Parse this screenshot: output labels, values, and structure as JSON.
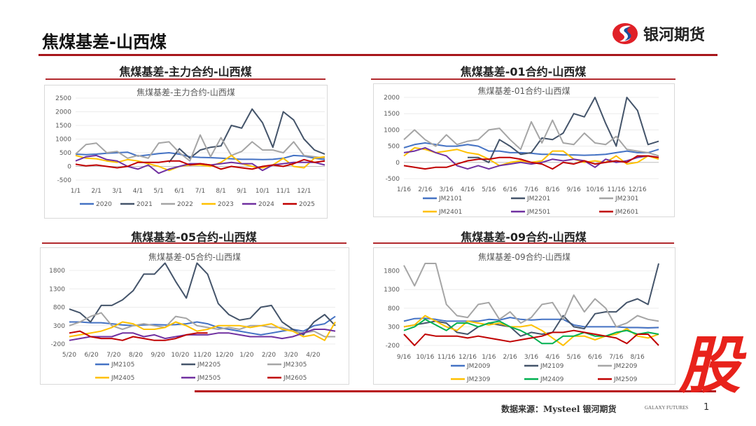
{
  "header": {
    "title": "焦煤基差-山西煤",
    "logo_text": "银河期货"
  },
  "footer": {
    "source": "数据来源：Mysteel 银河期货",
    "galaxy": "GALAXY FUTURES",
    "page_number": "1",
    "stamp": "股"
  },
  "panels": [
    {
      "heading": "焦煤基差-主力合约-山西煤"
    },
    {
      "heading": "焦煤基差-01合约-山西煤"
    },
    {
      "heading": "焦煤基差-05合约-山西煤"
    },
    {
      "heading": "焦煤基差-09合约-山西煤"
    }
  ],
  "chart_data": [
    {
      "type": "line",
      "title": "焦煤基差-主力合约-山西煤",
      "ylim": [
        -500,
        2500
      ],
      "yticks": [
        -500,
        0,
        500,
        1000,
        1500,
        2000,
        2500
      ],
      "xticks": [
        "1/1",
        "2/1",
        "3/1",
        "4/1",
        "5/1",
        "6/1",
        "7/1",
        "8/1",
        "9/1",
        "10/1",
        "11/1",
        "12/1"
      ],
      "legend_position": "bottom",
      "series": [
        {
          "name": "2020",
          "color": "#4472c4",
          "values": [
            450,
            430,
            450,
            480,
            500,
            520,
            380,
            420,
            470,
            500,
            450,
            350,
            330,
            320,
            300,
            280,
            260,
            260,
            250,
            260,
            300,
            400,
            380,
            300,
            250
          ]
        },
        {
          "name": "2021",
          "color": "#44546a",
          "values": [
            null,
            null,
            null,
            null,
            null,
            null,
            null,
            null,
            null,
            150,
            650,
            300,
            600,
            700,
            750,
            1500,
            1400,
            2100,
            1600,
            700,
            2000,
            1700,
            1000,
            600,
            450
          ]
        },
        {
          "name": "2022",
          "color": "#a5a5a5",
          "values": [
            450,
            800,
            850,
            500,
            550,
            300,
            400,
            300,
            850,
            900,
            500,
            200,
            1150,
            350,
            1050,
            400,
            550,
            900,
            600,
            600,
            500,
            900,
            400,
            350,
            300
          ]
        },
        {
          "name": "2023",
          "color": "#ffc000",
          "values": [
            400,
            300,
            280,
            200,
            150,
            250,
            200,
            100,
            0,
            -150,
            0,
            50,
            50,
            0,
            150,
            400,
            100,
            0,
            -50,
            50,
            300,
            0,
            -50,
            300,
            350
          ]
        },
        {
          "name": "2024",
          "color": "#7030a0",
          "values": [
            200,
            350,
            400,
            250,
            200,
            0,
            -100,
            50,
            -250,
            -100,
            0,
            100,
            100,
            50,
            100,
            150,
            100,
            100,
            -150,
            50,
            100,
            150,
            150,
            150,
            50
          ]
        },
        {
          "name": "2025",
          "color": "#c00000",
          "values": [
            80,
            20,
            50,
            0,
            -50,
            0,
            150,
            150,
            150,
            200,
            200,
            50,
            100,
            50,
            -100,
            0,
            -50,
            -100,
            0,
            50,
            0,
            100,
            250,
            150,
            200
          ]
        }
      ]
    },
    {
      "type": "line",
      "title": "焦煤基差-01合约-山西煤",
      "ylim": [
        -500,
        2000
      ],
      "yticks": [
        -500,
        0,
        500,
        1000,
        1500,
        2000
      ],
      "xticks": [
        "1/16",
        "2/16",
        "3/16",
        "4/16",
        "5/16",
        "6/16",
        "7/16",
        "8/16",
        "9/16",
        "10/16",
        "11/16",
        "12/16"
      ],
      "legend_position": "bottom",
      "series": [
        {
          "name": "JM2101",
          "color": "#4472c4",
          "values": [
            450,
            550,
            600,
            550,
            500,
            500,
            550,
            500,
            350,
            350,
            300,
            300,
            280,
            250,
            250,
            230,
            230,
            220,
            230,
            250,
            300,
            350,
            300,
            300,
            400
          ]
        },
        {
          "name": "JM2201",
          "color": "#44546a",
          "values": [
            null,
            null,
            null,
            null,
            null,
            null,
            150,
            150,
            0,
            700,
            500,
            250,
            300,
            750,
            700,
            900,
            1500,
            1400,
            2000,
            1200,
            500,
            2000,
            1600,
            550,
            650
          ]
        },
        {
          "name": "JM2301",
          "color": "#a5a5a5",
          "values": [
            700,
            1000,
            700,
            500,
            850,
            550,
            650,
            700,
            1000,
            1050,
            700,
            400,
            1250,
            600,
            1300,
            600,
            550,
            900,
            600,
            550,
            800,
            400,
            350,
            300,
            200
          ]
        },
        {
          "name": "JM2401",
          "color": "#ffc000",
          "values": [
            200,
            450,
            400,
            300,
            350,
            400,
            300,
            250,
            100,
            -100,
            0,
            50,
            0,
            50,
            350,
            350,
            100,
            0,
            50,
            0,
            200,
            -50,
            0,
            200,
            100
          ]
        },
        {
          "name": "JM2501",
          "color": "#7030a0",
          "values": [
            300,
            350,
            450,
            300,
            200,
            -100,
            -200,
            -100,
            -200,
            -100,
            -50,
            0,
            -50,
            0,
            100,
            50,
            100,
            50,
            -150,
            100,
            0,
            50,
            150,
            200,
            150
          ]
        },
        {
          "name": "JM2601",
          "color": "#c00000",
          "values": [
            -100,
            -150,
            -200,
            -150,
            -150,
            -50,
            50,
            100,
            100,
            150,
            150,
            100,
            0,
            -50,
            -200,
            0,
            -50,
            50,
            -50,
            0,
            50,
            0,
            200,
            200,
            150
          ]
        }
      ]
    },
    {
      "type": "line",
      "title": "焦煤基差-05合约-山西煤",
      "ylim": [
        -200,
        2000
      ],
      "yticks": [
        -200,
        300,
        800,
        1300,
        1800
      ],
      "xticks": [
        "5/20",
        "6/20",
        "7/20",
        "8/20",
        "9/20",
        "10/20",
        "11/20",
        "12/20",
        "1/20",
        "2/20",
        "3/20",
        "4/20"
      ],
      "legend_position": "bottom",
      "series": [
        {
          "name": "JM2105",
          "color": "#4472c4",
          "values": [
            400,
            400,
            380,
            380,
            350,
            320,
            300,
            320,
            330,
            320,
            330,
            350,
            400,
            350,
            250,
            200,
            150,
            100,
            50,
            100,
            150,
            200,
            150,
            300,
            350,
            550
          ]
        },
        {
          "name": "JM2205",
          "color": "#44546a",
          "values": [
            750,
            650,
            400,
            850,
            850,
            1000,
            1250,
            1700,
            1700,
            2000,
            1500,
            1050,
            2000,
            1700,
            900,
            600,
            450,
            500,
            800,
            850,
            400,
            200,
            50,
            400,
            600,
            300
          ]
        },
        {
          "name": "JM2305",
          "color": "#a5a5a5",
          "values": [
            300,
            400,
            550,
            650,
            300,
            200,
            300,
            350,
            300,
            250,
            550,
            500,
            300,
            250,
            200,
            250,
            200,
            300,
            300,
            250,
            250,
            150,
            100,
            150,
            0,
            0
          ]
        },
        {
          "name": "JM2405",
          "color": "#ffc000",
          "values": [
            0,
            50,
            100,
            150,
            250,
            400,
            350,
            200,
            200,
            250,
            400,
            300,
            150,
            200,
            300,
            300,
            300,
            250,
            300,
            350,
            200,
            150,
            0,
            50,
            -100,
            400
          ]
        },
        {
          "name": "JM2505",
          "color": "#7030a0",
          "values": [
            -100,
            -50,
            0,
            0,
            0,
            100,
            100,
            0,
            50,
            -50,
            0,
            50,
            50,
            50,
            100,
            100,
            50,
            0,
            0,
            0,
            -50,
            0,
            100,
            200,
            200,
            150
          ]
        },
        {
          "name": "JM2605",
          "color": "#c00000",
          "values": [
            100,
            150,
            0,
            -50,
            -50,
            -100,
            0,
            -50,
            -100,
            -100,
            -50,
            50,
            100,
            100,
            null,
            null,
            null,
            null,
            null,
            null,
            null,
            null,
            null,
            null,
            null,
            null
          ]
        }
      ]
    },
    {
      "type": "line",
      "title": "焦煤基差-09合约-山西煤",
      "ylim": [
        -200,
        2000
      ],
      "yticks": [
        -200,
        300,
        800,
        1300,
        1800
      ],
      "xticks": [
        "9/16",
        "10/16",
        "11/16",
        "12/16",
        "1/16",
        "2/16",
        "3/16",
        "4/16",
        "5/16",
        "6/16",
        "7/16",
        "8/16"
      ],
      "legend_position": "bottom",
      "series": [
        {
          "name": "JM2009",
          "color": "#4472c4",
          "values": [
            450,
            520,
            530,
            500,
            450,
            450,
            450,
            450,
            500,
            480,
            550,
            500,
            480,
            500,
            500,
            500,
            350,
            300,
            300,
            300,
            300,
            280,
            280,
            270,
            280
          ]
        },
        {
          "name": "JM2109",
          "color": "#44546a",
          "values": [
            300,
            350,
            400,
            450,
            400,
            150,
            100,
            300,
            400,
            350,
            300,
            50,
            150,
            100,
            150,
            600,
            300,
            250,
            650,
            700,
            700,
            950,
            1050,
            900,
            2000
          ]
        },
        {
          "name": "JM2209",
          "color": "#a5a5a5",
          "values": [
            1950,
            1400,
            2000,
            2000,
            900,
            600,
            550,
            900,
            950,
            500,
            700,
            400,
            550,
            900,
            950,
            500,
            1150,
            700,
            1050,
            800,
            300,
            400,
            600,
            500,
            450
          ]
        },
        {
          "name": "JM2309",
          "color": "#ffc000",
          "values": [
            300,
            350,
            600,
            450,
            300,
            200,
            450,
            400,
            350,
            400,
            300,
            300,
            350,
            200,
            0,
            -200,
            50,
            50,
            -50,
            50,
            100,
            250,
            50,
            0,
            100
          ]
        },
        {
          "name": "JM2409",
          "color": "#00b050",
          "values": [
            200,
            300,
            500,
            350,
            200,
            400,
            400,
            300,
            400,
            450,
            300,
            200,
            50,
            -150,
            -150,
            50,
            50,
            150,
            50,
            50,
            150,
            200,
            100,
            150,
            100
          ]
        },
        {
          "name": "JM2509",
          "color": "#c00000",
          "values": [
            100,
            -200,
            100,
            50,
            50,
            50,
            0,
            50,
            0,
            -50,
            -100,
            -50,
            0,
            50,
            150,
            150,
            200,
            150,
            100,
            50,
            0,
            -150,
            100,
            100,
            -200
          ]
        }
      ]
    }
  ]
}
